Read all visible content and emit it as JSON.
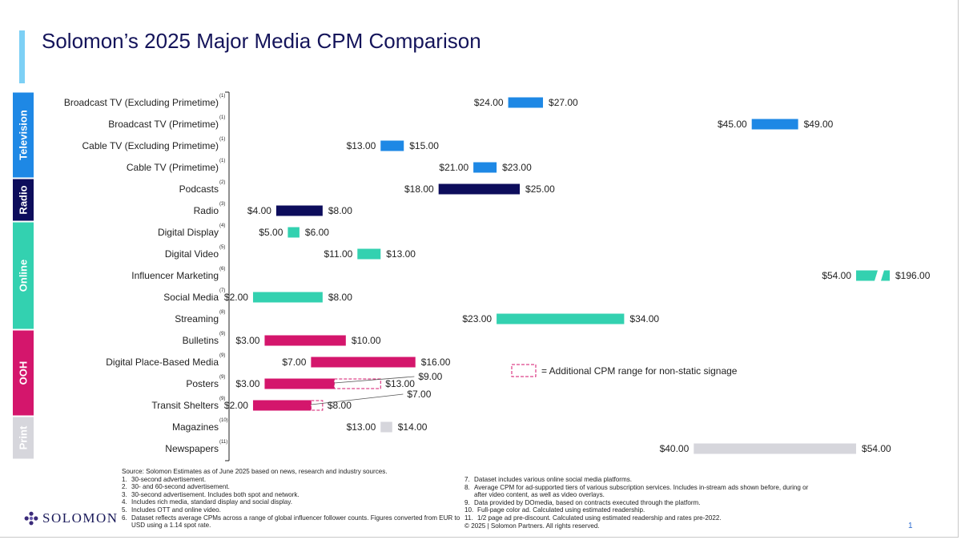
{
  "title": "Solomon’s 2025 Major Media CPM Comparison",
  "colors": {
    "Television": "#1e88e5",
    "Radio": "#0d0d5c",
    "Online": "#33d1b0",
    "OOH": "#d4166c",
    "Print": "#d6d6dc",
    "title": "#14145a",
    "accent": "#7dd0f5"
  },
  "chart_data": {
    "type": "range-bar",
    "groups": [
      {
        "name": "Television",
        "rows": [
          0,
          3
        ]
      },
      {
        "name": "Radio",
        "rows": [
          4,
          5
        ]
      },
      {
        "name": "Online",
        "rows": [
          6,
          10
        ]
      },
      {
        "name": "OOH",
        "rows": [
          11,
          14
        ]
      },
      {
        "name": "Print",
        "rows": [
          15,
          16
        ]
      }
    ],
    "rows": [
      {
        "label": "Broadcast TV (Excluding Primetime)",
        "note": "(1)",
        "group": "Television",
        "low": 24,
        "high": 27,
        "low_label": "$24.00",
        "high_label": "$27.00"
      },
      {
        "label": "Broadcast TV (Primetime)",
        "note": "(1)",
        "group": "Television",
        "low": 45,
        "high": 49,
        "low_label": "$45.00",
        "high_label": "$49.00"
      },
      {
        "label": "Cable TV (Excluding Primetime)",
        "note": "(1)",
        "group": "Television",
        "low": 13,
        "high": 15,
        "low_label": "$13.00",
        "high_label": "$15.00"
      },
      {
        "label": "Cable TV (Primetime)",
        "note": "(1)",
        "group": "Television",
        "low": 21,
        "high": 23,
        "low_label": "$21.00",
        "high_label": "$23.00"
      },
      {
        "label": "Podcasts",
        "note": "(2)",
        "group": "Radio",
        "low": 18,
        "high": 25,
        "low_label": "$18.00",
        "high_label": "$25.00"
      },
      {
        "label": "Radio",
        "note": "(3)",
        "group": "Radio",
        "low": 4,
        "high": 8,
        "low_label": "$4.00",
        "high_label": "$8.00"
      },
      {
        "label": "Digital Display",
        "note": "(4)",
        "group": "Online",
        "low": 5,
        "high": 6,
        "low_label": "$5.00",
        "high_label": "$6.00"
      },
      {
        "label": "Digital Video",
        "note": "(5)",
        "group": "Online",
        "low": 11,
        "high": 13,
        "low_label": "$11.00",
        "high_label": "$13.00"
      },
      {
        "label": "Influencer Marketing",
        "note": "(6)",
        "group": "Online",
        "low": 54,
        "high": 196,
        "low_label": "$54.00",
        "high_label": "$196.00",
        "axis_break": true
      },
      {
        "label": "Social Media",
        "note": "(7)",
        "group": "Online",
        "low": 2,
        "high": 8,
        "low_label": "$2.00",
        "high_label": "$8.00"
      },
      {
        "label": "Streaming",
        "note": "(8)",
        "group": "Online",
        "low": 23,
        "high": 34,
        "low_label": "$23.00",
        "high_label": "$34.00"
      },
      {
        "label": "Bulletins",
        "note": "(9)",
        "group": "OOH",
        "low": 3,
        "high": 10,
        "low_label": "$3.00",
        "high_label": "$10.00"
      },
      {
        "label": "Digital Place-Based Media",
        "note": "(9)",
        "group": "OOH",
        "low": 7,
        "high": 16,
        "low_label": "$7.00",
        "high_label": "$16.00"
      },
      {
        "label": "Posters",
        "note": "(9)",
        "group": "OOH",
        "low": 3,
        "high": 9,
        "low_label": "$3.00",
        "high_label": "$9.00",
        "extra_high": 13,
        "extra_label": "$13.00"
      },
      {
        "label": "Transit Shelters",
        "note": "(9)",
        "group": "OOH",
        "low": 2,
        "high": 7,
        "low_label": "$2.00",
        "high_label": "$7.00",
        "extra_high": 8,
        "extra_label": "$8.00"
      },
      {
        "label": "Magazines",
        "note": "(10)",
        "group": "Print",
        "low": 13,
        "high": 14,
        "low_label": "$13.00",
        "high_label": "$14.00"
      },
      {
        "label": "Newspapers",
        "note": "(11)",
        "group": "Print",
        "low": 40,
        "high": 54,
        "low_label": "$40.00",
        "high_label": "$54.00"
      }
    ],
    "legend": "= Additional CPM range for non-static signage",
    "legend_position": "right"
  },
  "footer": {
    "source": "Source: Solomon Estimates as of June 2025 based on news, research and industry sources.",
    "notes_left": [
      {
        "num": "1.",
        "text": "30-second advertisement."
      },
      {
        "num": "2.",
        "text": "30- and 60-second advertisement."
      },
      {
        "num": "3.",
        "text": "30-second advertisement. Includes both spot and network."
      },
      {
        "num": "4.",
        "text": "Includes rich media, standard display and social display."
      },
      {
        "num": "5.",
        "text": "Includes OTT and online video."
      },
      {
        "num": "6.",
        "text": "Dataset reflects average CPMs across a range of global influencer follower counts. Figures converted from EUR to USD using a 1.14 spot rate."
      }
    ],
    "notes_right": [
      {
        "num": "7.",
        "text": "Dataset includes various online social media platforms."
      },
      {
        "num": "8.",
        "text": "Average CPM for ad-supported tiers of various subscription services. Includes in-stream ads shown before, during or after video content, as well as video overlays."
      },
      {
        "num": "9.",
        "text": "Data provided by DOmedia, based on contracts executed through the platform."
      },
      {
        "num": "10.",
        "text": "Full-page color ad. Calculated using estimated readership."
      },
      {
        "num": "11.",
        "text": "1/2 page ad pre-discount. Calculated using estimated readership and rates pre-2022."
      }
    ],
    "copyright": "© 2025 | Solomon Partners. All rights reserved."
  },
  "logo_text": "SOLOMON",
  "page_number": "1"
}
